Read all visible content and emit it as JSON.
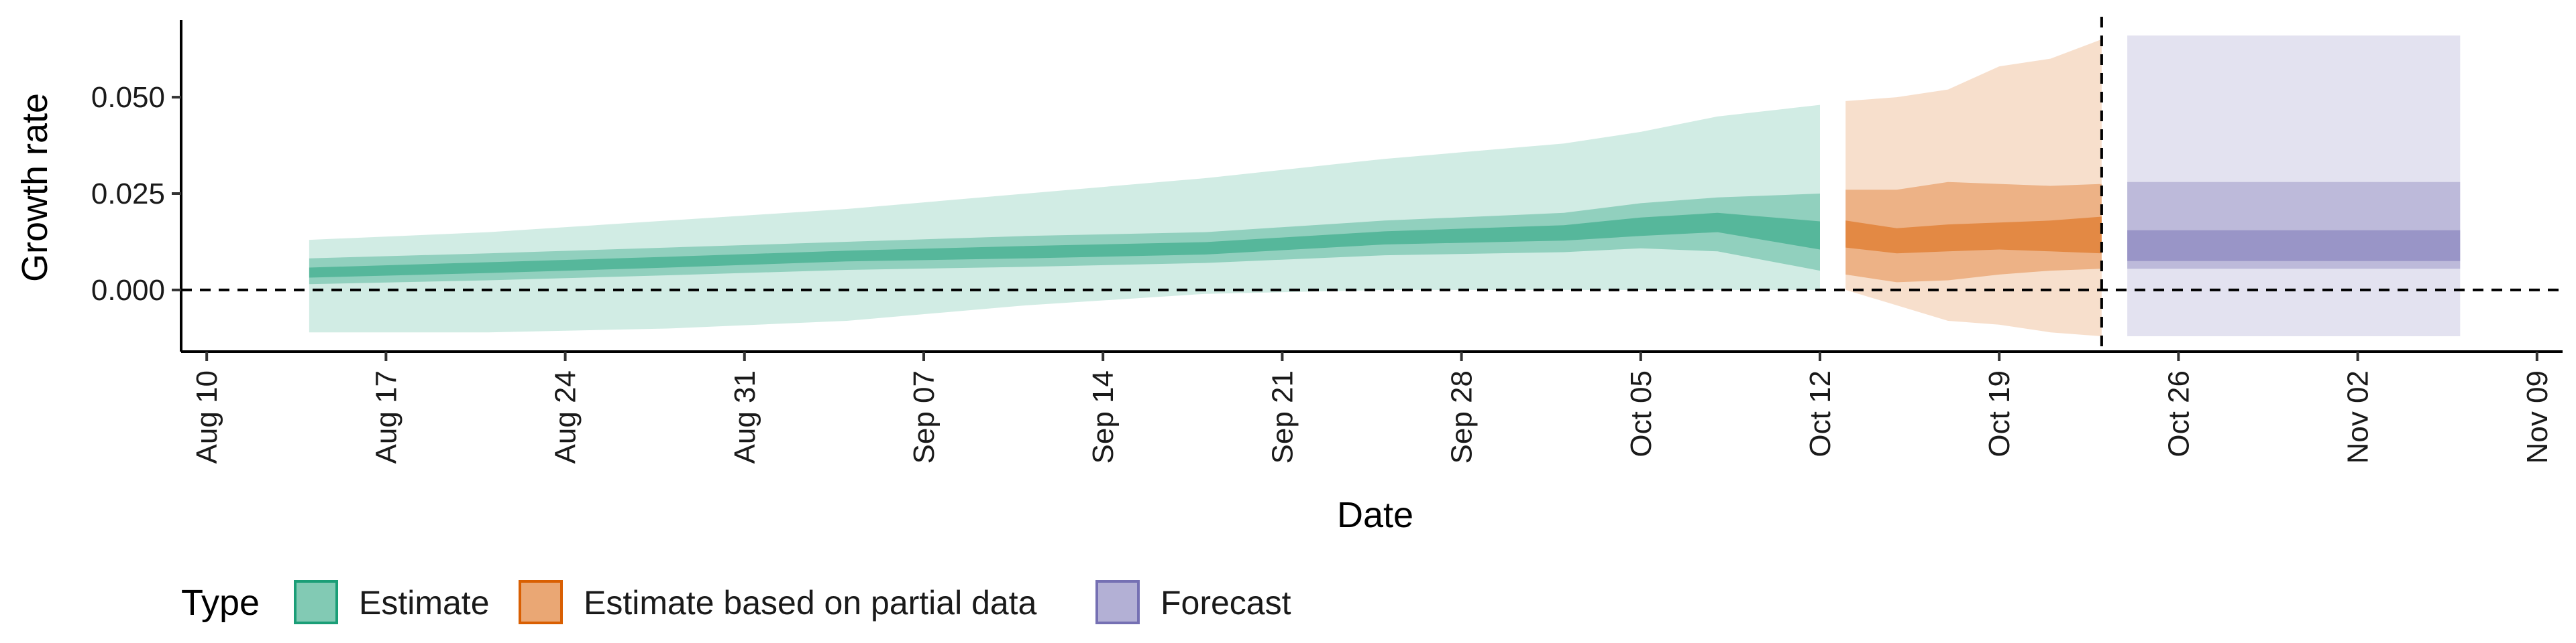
{
  "chart_data": {
    "type": "area",
    "title": "",
    "xlabel": "Date",
    "ylabel": "Growth rate",
    "xlim": [
      "2021-08-09",
      "2021-11-10"
    ],
    "ylim": [
      -0.016,
      0.07
    ],
    "x_ticks": [
      "2021-08-10",
      "2021-08-17",
      "2021-08-24",
      "2021-08-31",
      "2021-09-07",
      "2021-09-14",
      "2021-09-21",
      "2021-09-28",
      "2021-10-05",
      "2021-10-12",
      "2021-10-19",
      "2021-10-26",
      "2021-11-02",
      "2021-11-09"
    ],
    "x_tick_labels": [
      "Aug 10",
      "Aug 17",
      "Aug 24",
      "Aug 31",
      "Sep 07",
      "Sep 14",
      "Sep 21",
      "Sep 28",
      "Oct 05",
      "Oct 12",
      "Oct 19",
      "Oct 26",
      "Nov 02",
      "Nov 09"
    ],
    "y_ticks": [
      0.0,
      0.025,
      0.05
    ],
    "y_tick_labels": [
      "0.000",
      "0.025",
      "0.050"
    ],
    "reference_lines": [
      {
        "axis": "y",
        "value": 0,
        "style": "dashed"
      },
      {
        "axis": "x",
        "value": "2021-10-23",
        "style": "dashed"
      }
    ],
    "legend": {
      "title": "Type",
      "position": "bottom",
      "entries": [
        {
          "label": "Estimate",
          "color": "#1b9e77"
        },
        {
          "label": "Estimate based on partial data",
          "color": "#d95f02"
        },
        {
          "label": "Forecast",
          "color": "#7570b3"
        }
      ]
    },
    "series": [
      {
        "name": "Estimate",
        "color": "#1b9e77",
        "x": [
          "2021-08-14",
          "2021-08-21",
          "2021-08-28",
          "2021-09-04",
          "2021-09-11",
          "2021-09-18",
          "2021-09-25",
          "2021-10-02",
          "2021-10-05",
          "2021-10-08",
          "2021-10-12"
        ],
        "median": [
          0.0045,
          0.0058,
          0.0072,
          0.0088,
          0.0098,
          0.0108,
          0.0135,
          0.0148,
          0.0162,
          0.0178,
          0.0142
        ],
        "lower_20": [
          0.0032,
          0.0044,
          0.0058,
          0.0074,
          0.0082,
          0.0092,
          0.0118,
          0.0128,
          0.014,
          0.015,
          0.0105
        ],
        "upper_20": [
          0.0058,
          0.0072,
          0.0086,
          0.0102,
          0.0114,
          0.0124,
          0.0152,
          0.0168,
          0.0188,
          0.02,
          0.0178
        ],
        "lower_50": [
          0.0015,
          0.0025,
          0.0038,
          0.0052,
          0.006,
          0.007,
          0.009,
          0.0098,
          0.0108,
          0.01,
          0.005
        ],
        "upper_50": [
          0.0082,
          0.0095,
          0.011,
          0.0125,
          0.014,
          0.015,
          0.018,
          0.02,
          0.0225,
          0.024,
          0.025
        ],
        "lower_90": [
          -0.011,
          -0.011,
          -0.01,
          -0.008,
          -0.004,
          -0.001,
          0.0,
          0.0,
          0.0,
          0.0,
          0.0
        ],
        "upper_90": [
          0.013,
          0.015,
          0.018,
          0.021,
          0.025,
          0.029,
          0.034,
          0.038,
          0.041,
          0.045,
          0.048
        ]
      },
      {
        "name": "Estimate based on partial data",
        "color": "#d95f02",
        "x": [
          "2021-10-13",
          "2021-10-15",
          "2021-10-17",
          "2021-10-19",
          "2021-10-21",
          "2021-10-23"
        ],
        "median": [
          0.0145,
          0.0125,
          0.0135,
          0.014,
          0.0142,
          0.0145
        ],
        "lower_20": [
          0.011,
          0.0095,
          0.01,
          0.0105,
          0.01,
          0.0095
        ],
        "upper_20": [
          0.018,
          0.016,
          0.017,
          0.0175,
          0.018,
          0.019
        ],
        "lower_50": [
          0.004,
          0.002,
          0.0025,
          0.004,
          0.005,
          0.0055
        ],
        "upper_50": [
          0.026,
          0.026,
          0.028,
          0.0275,
          0.027,
          0.0275
        ],
        "lower_90": [
          0.0,
          -0.004,
          -0.008,
          -0.009,
          -0.011,
          -0.012
        ],
        "upper_90": [
          0.049,
          0.05,
          0.052,
          0.058,
          0.06,
          0.065
        ]
      },
      {
        "name": "Forecast",
        "color": "#7570b3",
        "x": [
          "2021-10-24",
          "2021-11-06"
        ],
        "median": [
          0.0115,
          0.0115
        ],
        "lower_20": [
          0.0075,
          0.0075
        ],
        "upper_20": [
          0.0155,
          0.0155
        ],
        "lower_50": [
          0.0055,
          0.0055
        ],
        "upper_50": [
          0.028,
          0.028
        ],
        "lower_90": [
          -0.012,
          -0.012
        ],
        "upper_90": [
          0.066,
          0.066
        ]
      }
    ]
  }
}
